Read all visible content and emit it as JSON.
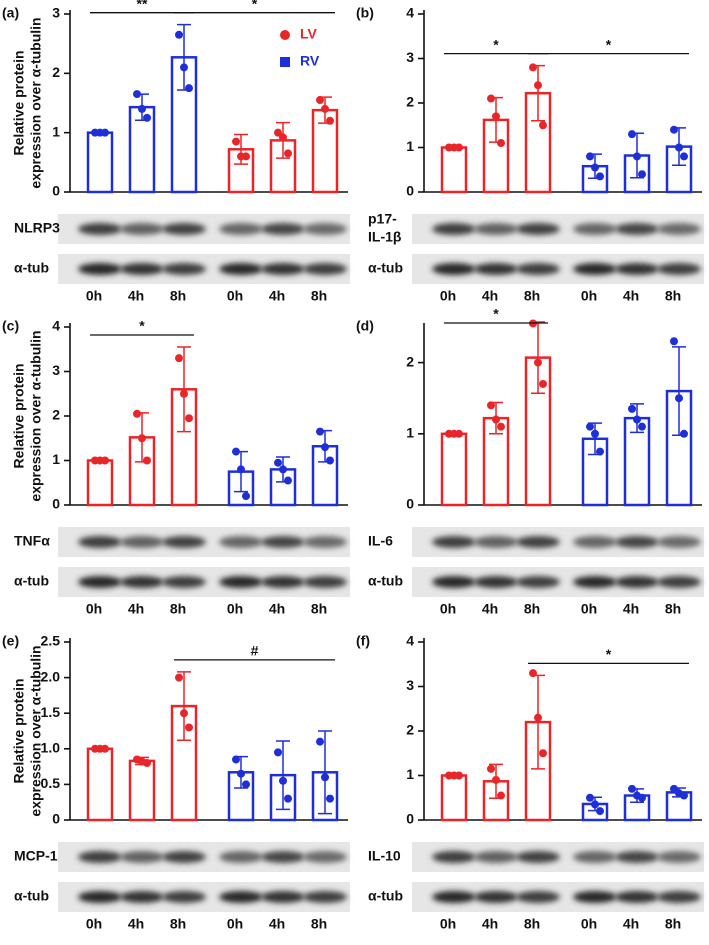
{
  "chart_data": [
    {
      "type": "bar",
      "label": "(a)",
      "ylabel": [
        "Relative protein",
        "expression over α-tubulin"
      ],
      "categories": [
        "0h",
        "4h",
        "8h",
        "0h",
        "4h",
        "8h"
      ],
      "colors": [
        "#1f2fd6",
        "#1f2fd6",
        "#1f2fd6",
        "#e8262a",
        "#e8262a",
        "#e8262a"
      ],
      "values": [
        1.0,
        1.43,
        2.27,
        0.72,
        0.87,
        1.38
      ],
      "errors": [
        0,
        0.22,
        0.55,
        0.25,
        0.3,
        0.22
      ],
      "points": [
        [
          1,
          1,
          1
        ],
        [
          1.65,
          1.4,
          1.25
        ],
        [
          2.65,
          2.1,
          1.75
        ],
        [
          0.85,
          0.6,
          0.6
        ],
        [
          1.0,
          0.92,
          0.65
        ],
        [
          1.55,
          1.4,
          1.2
        ]
      ],
      "ylim": [
        0,
        3
      ],
      "yticks": [
        0,
        1,
        2,
        3
      ],
      "legend": [
        {
          "name": "LV",
          "color": "#e8262a"
        },
        {
          "name": "RV",
          "color": "#1f2fd6"
        }
      ],
      "annotations": [
        {
          "text": "**",
          "from": 0,
          "to": 2
        },
        {
          "text": "*",
          "from": 2,
          "to": 5
        }
      ],
      "blots": [
        [
          "NLRP3"
        ],
        [
          "α-tub"
        ]
      ]
    },
    {
      "type": "bar",
      "label": "(b)",
      "categories": [
        "0h",
        "4h",
        "8h",
        "0h",
        "4h",
        "8h"
      ],
      "colors": [
        "#e8262a",
        "#e8262a",
        "#e8262a",
        "#1f2fd6",
        "#1f2fd6",
        "#1f2fd6"
      ],
      "values": [
        1.0,
        1.62,
        2.22,
        0.58,
        0.82,
        1.02
      ],
      "errors": [
        0,
        0.5,
        0.62,
        0.27,
        0.5,
        0.42
      ],
      "points": [
        [
          1,
          1,
          1
        ],
        [
          2.1,
          1.7,
          1.1
        ],
        [
          2.8,
          2.4,
          1.5
        ],
        [
          0.8,
          0.55,
          0.35
        ],
        [
          1.3,
          0.8,
          0.4
        ],
        [
          1.4,
          1.0,
          0.8
        ]
      ],
      "ylim": [
        0,
        4
      ],
      "yticks": [
        0,
        1,
        2,
        3,
        4
      ],
      "annotations": [
        {
          "text": "*",
          "from": 0,
          "to": 2
        },
        {
          "text": "*",
          "from": 2,
          "to": 5
        }
      ],
      "blots": [
        [
          "p17-",
          "IL-1β"
        ],
        [
          "α-tub"
        ]
      ]
    },
    {
      "type": "bar",
      "label": "(c)",
      "ylabel": [
        "Relative protein",
        "expression over α-tubulin"
      ],
      "categories": [
        "0h",
        "4h",
        "8h",
        "0h",
        "4h",
        "8h"
      ],
      "colors": [
        "#e8262a",
        "#e8262a",
        "#e8262a",
        "#1f2fd6",
        "#1f2fd6",
        "#1f2fd6"
      ],
      "values": [
        1.0,
        1.52,
        2.6,
        0.75,
        0.8,
        1.32
      ],
      "errors": [
        0,
        0.55,
        0.95,
        0.45,
        0.28,
        0.35
      ],
      "points": [
        [
          1,
          1,
          1
        ],
        [
          2.05,
          1.5,
          1.0
        ],
        [
          3.3,
          2.5,
          1.95
        ],
        [
          1.2,
          0.8,
          0.2
        ],
        [
          0.95,
          0.8,
          0.55
        ],
        [
          1.65,
          1.3,
          1.0
        ]
      ],
      "ylim": [
        0,
        4
      ],
      "yticks": [
        0,
        1,
        2,
        3,
        4
      ],
      "annotations": [
        {
          "text": "*",
          "from": 0,
          "to": 2
        }
      ],
      "blots": [
        [
          "TNFα"
        ],
        [
          "α-tub"
        ]
      ]
    },
    {
      "type": "bar",
      "label": "(d)",
      "categories": [
        "0h",
        "4h",
        "8h",
        "0h",
        "4h",
        "8h"
      ],
      "colors": [
        "#e8262a",
        "#e8262a",
        "#e8262a",
        "#1f2fd6",
        "#1f2fd6",
        "#1f2fd6"
      ],
      "values": [
        1.0,
        1.22,
        2.07,
        0.93,
        1.22,
        1.6
      ],
      "errors": [
        0,
        0.22,
        0.5,
        0.22,
        0.2,
        0.62
      ],
      "points": [
        [
          1,
          1,
          1
        ],
        [
          1.4,
          1.2,
          1.1
        ],
        [
          2.55,
          2.0,
          1.7
        ],
        [
          1.1,
          1.0,
          0.75
        ],
        [
          1.35,
          1.2,
          1.1
        ],
        [
          2.3,
          1.5,
          1.0
        ]
      ],
      "ylim": [
        0,
        2.5
      ],
      "yticks": [
        0,
        1,
        2
      ],
      "annotations": [
        {
          "text": "*",
          "from": 0,
          "to": 2
        }
      ],
      "blots": [
        [
          "IL-6"
        ],
        [
          "α-tub"
        ]
      ]
    },
    {
      "type": "bar",
      "label": "(e)",
      "ylabel": [
        "Relative protein",
        "expression over α-tubulin"
      ],
      "categories": [
        "0h",
        "4h",
        "8h",
        "0h",
        "4h",
        "8h"
      ],
      "colors": [
        "#e8262a",
        "#e8262a",
        "#e8262a",
        "#1f2fd6",
        "#1f2fd6",
        "#1f2fd6"
      ],
      "values": [
        1.0,
        0.83,
        1.6,
        0.67,
        0.63,
        0.67
      ],
      "errors": [
        0,
        0.05,
        0.48,
        0.22,
        0.48,
        0.58
      ],
      "points": [
        [
          1,
          1,
          1
        ],
        [
          0.85,
          0.82,
          0.8
        ],
        [
          2.0,
          1.5,
          1.3
        ],
        [
          0.85,
          0.65,
          0.5
        ],
        [
          0.95,
          0.55,
          0.3
        ],
        [
          1.1,
          0.6,
          0.3
        ]
      ],
      "ylim": [
        0,
        2.5
      ],
      "yticks": [
        0,
        0.5,
        {
          "value": 1,
          "label": "1.0"
        },
        1.5,
        {
          "value": 2,
          "label": "2.0"
        },
        2.5
      ],
      "annotations": [
        {
          "text": "#",
          "from": 2,
          "to": 5
        }
      ],
      "blots": [
        [
          "MCP-1"
        ],
        [
          "α-tub"
        ]
      ]
    },
    {
      "type": "bar",
      "label": "(f)",
      "categories": [
        "0h",
        "4h",
        "8h",
        "0h",
        "4h",
        "8h"
      ],
      "colors": [
        "#e8262a",
        "#e8262a",
        "#e8262a",
        "#1f2fd6",
        "#1f2fd6",
        "#1f2fd6"
      ],
      "values": [
        1.0,
        0.87,
        2.2,
        0.36,
        0.55,
        0.62
      ],
      "errors": [
        0,
        0.38,
        1.05,
        0.15,
        0.15,
        0.1
      ],
      "points": [
        [
          1,
          1,
          1
        ],
        [
          1.15,
          0.9,
          0.55
        ],
        [
          3.3,
          2.3,
          1.5
        ],
        [
          0.5,
          0.35,
          0.2
        ],
        [
          0.7,
          0.55,
          0.5
        ],
        [
          0.7,
          0.6,
          0.55
        ]
      ],
      "ylim": [
        0,
        4
      ],
      "yticks": [
        0,
        1,
        2,
        3,
        4
      ],
      "annotations": [
        {
          "text": "*",
          "from": 2,
          "to": 5
        }
      ],
      "blots": [
        [
          "IL-10"
        ],
        [
          "α-tub"
        ]
      ]
    }
  ]
}
